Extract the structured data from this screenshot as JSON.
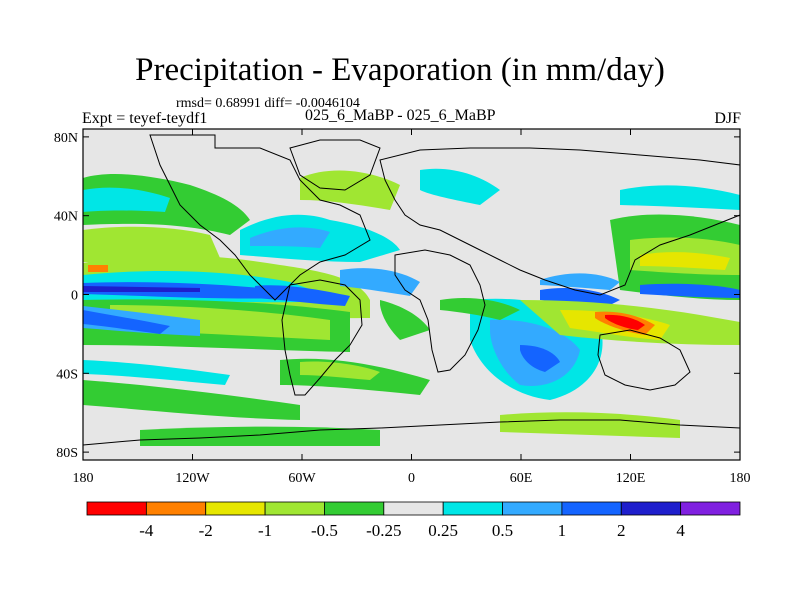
{
  "title": "Precipitation - Evaporation (in mm/day)",
  "stats": "rmsd= 0.68991  diff= -0.0046104",
  "left_label": "Expt = teyef-teydf1",
  "center_label": "025_6_MaBP - 025_6_MaBP",
  "right_label": "DJF",
  "y_ticks": [
    {
      "label": "80N",
      "lat": 80
    },
    {
      "label": "40N",
      "lat": 40
    },
    {
      "label": "0",
      "lat": 0
    },
    {
      "label": "40S",
      "lat": -40
    },
    {
      "label": "80S",
      "lat": -80
    }
  ],
  "x_ticks": [
    {
      "label": "180",
      "lon": -180
    },
    {
      "label": "120W",
      "lon": -120
    },
    {
      "label": "60W",
      "lon": -60
    },
    {
      "label": "0",
      "lon": 0
    },
    {
      "label": "60E",
      "lon": 60
    },
    {
      "label": "120E",
      "lon": 120
    },
    {
      "label": "180",
      "lon": 180
    }
  ],
  "colorbar": {
    "colors": [
      "#ff0000",
      "#ff8000",
      "#e6e600",
      "#a0e632",
      "#33cc33",
      "#e6e6e6",
      "#00e6e6",
      "#33aaff",
      "#1464ff",
      "#1e1ecc",
      "#8020e0"
    ],
    "labels": [
      "-4",
      "-2",
      "-1",
      "-0.5",
      "-0.25",
      "0.25",
      "0.5",
      "1",
      "2",
      "4"
    ]
  },
  "palette": {
    "background": "#e6e6e6",
    "coastline": "#000000"
  }
}
